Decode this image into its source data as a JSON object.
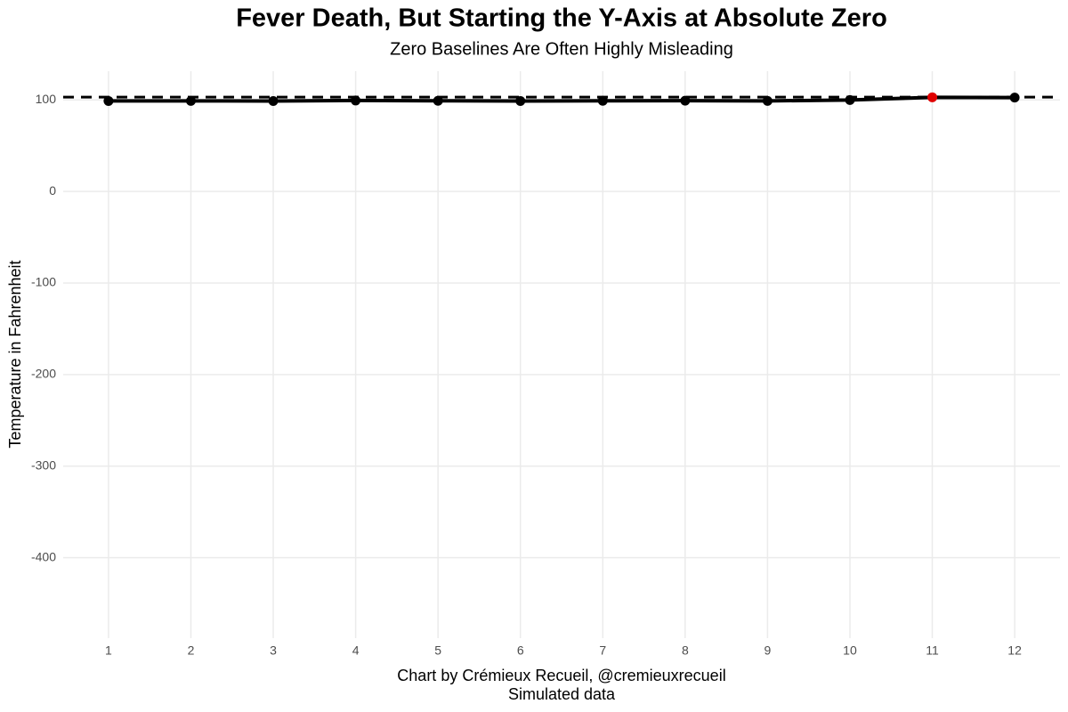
{
  "chart_data": {
    "type": "line",
    "title": "Fever Death, But Starting the Y-Axis at Absolute Zero",
    "subtitle": "Zero Baselines Are Often Highly Misleading",
    "y_label": "Temperature in Fahrenheit",
    "caption": [
      "Chart by Crémieux Recueil, @cremieuxrecueil",
      "Simulated data"
    ],
    "x": [
      1,
      2,
      3,
      4,
      5,
      6,
      7,
      8,
      9,
      10,
      11,
      12
    ],
    "series": [
      {
        "color": "#000000",
        "values": [
          98.8,
          98.9,
          98.7,
          99.3,
          99.0,
          98.8,
          99.0,
          99.1,
          98.9,
          99.8,
          102.8,
          102.5
        ],
        "marker_colors": [
          "#000000",
          "#000000",
          "#000000",
          "#000000",
          "#000000",
          "#000000",
          "#000000",
          "#000000",
          "#000000",
          "#000000",
          "#e00000",
          "#000000"
        ]
      }
    ],
    "reference_line": {
      "value": 103,
      "style": "dashed",
      "color": "#000000"
    },
    "xlim": [
      0.45,
      12.55
    ],
    "xticks": [
      1,
      2,
      3,
      4,
      5,
      6,
      7,
      8,
      9,
      10,
      11,
      12
    ],
    "ylim": [
      -487.8,
      131.3
    ],
    "yticks": [
      -400,
      -300,
      -200,
      -100,
      0,
      100
    ],
    "grid": true
  }
}
